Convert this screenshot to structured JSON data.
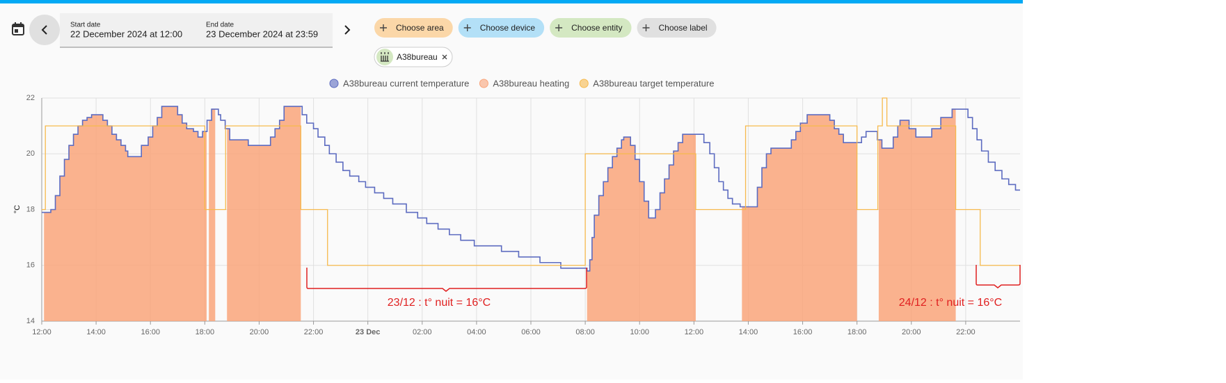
{
  "toolbar": {
    "start_label": "Start date",
    "start_value": "22 December 2024 at 12:00",
    "end_label": "End date",
    "end_value": "23 December 2024 at 23:59",
    "chips": [
      "Choose area",
      "Choose device",
      "Choose entity",
      "Choose label"
    ],
    "selected": "A38bureau"
  },
  "chart_data": {
    "type": "line",
    "step": true,
    "y_label": "°C",
    "grid": true,
    "xlim": [
      "2024-12-22T12:00",
      "2024-12-24T00:00"
    ],
    "ylim": [
      14,
      22
    ],
    "yticks": [
      14,
      16,
      18,
      20,
      22
    ],
    "xticks": [
      {
        "value": "2024-12-22T12:00",
        "label": "12:00"
      },
      {
        "value": "2024-12-22T14:00",
        "label": "14:00"
      },
      {
        "value": "2024-12-22T16:00",
        "label": "16:00"
      },
      {
        "value": "2024-12-22T18:00",
        "label": "18:00"
      },
      {
        "value": "2024-12-22T20:00",
        "label": "20:00"
      },
      {
        "value": "2024-12-22T22:00",
        "label": "22:00"
      },
      {
        "value": "2024-12-23T00:00",
        "label": "23 Dec",
        "bold": true
      },
      {
        "value": "2024-12-23T02:00",
        "label": "02:00"
      },
      {
        "value": "2024-12-23T04:00",
        "label": "04:00"
      },
      {
        "value": "2024-12-23T06:00",
        "label": "06:00"
      },
      {
        "value": "2024-12-23T08:00",
        "label": "08:00"
      },
      {
        "value": "2024-12-23T10:00",
        "label": "10:00"
      },
      {
        "value": "2024-12-23T12:00",
        "label": "12:00"
      },
      {
        "value": "2024-12-23T14:00",
        "label": "14:00"
      },
      {
        "value": "2024-12-23T16:00",
        "label": "16:00"
      },
      {
        "value": "2024-12-23T18:00",
        "label": "18:00"
      },
      {
        "value": "2024-12-23T20:00",
        "label": "20:00"
      },
      {
        "value": "2024-12-23T22:00",
        "label": "22:00"
      }
    ],
    "series": [
      {
        "name": "A38bureau current temperature",
        "color": "#5c6bc0",
        "x": [
          "2024-12-22T12:00",
          "2024-12-22T12:20",
          "2024-12-22T12:30",
          "2024-12-22T12:40",
          "2024-12-22T12:50",
          "2024-12-22T13:00",
          "2024-12-22T13:10",
          "2024-12-22T13:20",
          "2024-12-22T13:30",
          "2024-12-22T13:40",
          "2024-12-22T13:50",
          "2024-12-22T14:15",
          "2024-12-22T14:25",
          "2024-12-22T14:35",
          "2024-12-22T14:45",
          "2024-12-22T14:55",
          "2024-12-22T15:05",
          "2024-12-22T15:10",
          "2024-12-22T15:40",
          "2024-12-22T15:55",
          "2024-12-22T16:05",
          "2024-12-22T16:15",
          "2024-12-22T16:25",
          "2024-12-22T17:00",
          "2024-12-22T17:10",
          "2024-12-22T17:20",
          "2024-12-22T17:35",
          "2024-12-22T17:45",
          "2024-12-22T17:55",
          "2024-12-22T18:05",
          "2024-12-22T18:15",
          "2024-12-22T18:30",
          "2024-12-22T18:35",
          "2024-12-22T18:45",
          "2024-12-22T18:55",
          "2024-12-22T19:36",
          "2024-12-22T20:25",
          "2024-12-22T20:35",
          "2024-12-22T20:45",
          "2024-12-22T20:55",
          "2024-12-22T21:35",
          "2024-12-22T21:45",
          "2024-12-22T22:00",
          "2024-12-22T22:10",
          "2024-12-22T22:25",
          "2024-12-22T22:35",
          "2024-12-22T22:50",
          "2024-12-22T23:05",
          "2024-12-22T23:20",
          "2024-12-22T23:40",
          "2024-12-22T23:55",
          "2024-12-23T00:15",
          "2024-12-23T00:35",
          "2024-12-23T00:55",
          "2024-12-23T01:25",
          "2024-12-23T01:50",
          "2024-12-23T02:10",
          "2024-12-23T02:35",
          "2024-12-23T03:00",
          "2024-12-23T03:25",
          "2024-12-23T03:55",
          "2024-12-23T04:55",
          "2024-12-23T05:33",
          "2024-12-23T06:20",
          "2024-12-23T07:06",
          "2024-12-23T08:04",
          "2024-12-23T08:10",
          "2024-12-23T08:15",
          "2024-12-23T08:20",
          "2024-12-23T08:30",
          "2024-12-23T08:40",
          "2024-12-23T08:50",
          "2024-12-23T09:00",
          "2024-12-23T09:10",
          "2024-12-23T09:20",
          "2024-12-23T09:25",
          "2024-12-23T09:40",
          "2024-12-23T09:50",
          "2024-12-23T10:00",
          "2024-12-23T10:10",
          "2024-12-23T10:20",
          "2024-12-23T10:35",
          "2024-12-23T10:45",
          "2024-12-23T10:55",
          "2024-12-23T11:05",
          "2024-12-23T11:15",
          "2024-12-23T11:25",
          "2024-12-23T11:35",
          "2024-12-23T12:22",
          "2024-12-23T12:35",
          "2024-12-23T12:45",
          "2024-12-23T12:55",
          "2024-12-23T13:05",
          "2024-12-23T13:15",
          "2024-12-23T13:25",
          "2024-12-23T13:42",
          "2024-12-23T14:20",
          "2024-12-23T14:30",
          "2024-12-23T14:40",
          "2024-12-23T14:50",
          "2024-12-23T15:35",
          "2024-12-23T15:45",
          "2024-12-23T15:55",
          "2024-12-23T16:10",
          "2024-12-23T17:00",
          "2024-12-23T17:10",
          "2024-12-23T17:20",
          "2024-12-23T17:30",
          "2024-12-23T18:10",
          "2024-12-23T18:20",
          "2024-12-23T18:45",
          "2024-12-23T18:55",
          "2024-12-23T19:20",
          "2024-12-23T19:30",
          "2024-12-23T19:35",
          "2024-12-23T19:55",
          "2024-12-23T20:10",
          "2024-12-23T20:45",
          "2024-12-23T21:05",
          "2024-12-23T21:30",
          "2024-12-23T22:05",
          "2024-12-23T22:15",
          "2024-12-23T22:25",
          "2024-12-23T22:35",
          "2024-12-23T22:50",
          "2024-12-23T23:05",
          "2024-12-23T23:20",
          "2024-12-23T23:35",
          "2024-12-23T23:50"
        ],
        "values": [
          17.9,
          18.0,
          18.5,
          19.2,
          19.8,
          20.3,
          20.7,
          21.0,
          21.2,
          21.3,
          21.4,
          21.2,
          21.0,
          20.7,
          20.5,
          20.3,
          20.1,
          19.9,
          20.3,
          20.6,
          21.0,
          21.3,
          21.7,
          21.4,
          21.1,
          20.9,
          20.8,
          20.6,
          20.8,
          21.2,
          21.6,
          21.4,
          21.2,
          20.9,
          20.5,
          20.3,
          20.6,
          20.9,
          21.2,
          21.7,
          21.4,
          21.1,
          20.9,
          20.6,
          20.3,
          20.0,
          19.7,
          19.4,
          19.2,
          19.0,
          18.8,
          18.6,
          18.4,
          18.2,
          17.9,
          17.7,
          17.5,
          17.3,
          17.1,
          16.9,
          16.7,
          16.5,
          16.3,
          16.1,
          15.9,
          15.8,
          16.2,
          17.0,
          17.8,
          18.5,
          19.0,
          19.5,
          19.9,
          20.2,
          20.5,
          20.6,
          20.3,
          19.8,
          19.0,
          18.3,
          17.7,
          18.0,
          18.6,
          19.1,
          19.6,
          20.1,
          20.4,
          20.7,
          20.4,
          20.0,
          19.5,
          19.0,
          18.7,
          18.4,
          18.2,
          18.1,
          18.8,
          19.5,
          20.0,
          20.2,
          20.5,
          20.8,
          21.1,
          21.4,
          21.2,
          20.9,
          20.7,
          20.4,
          20.6,
          20.8,
          20.5,
          20.2,
          20.6,
          21.0,
          21.2,
          20.9,
          20.6,
          20.9,
          21.3,
          21.6,
          21.3,
          20.9,
          20.5,
          20.1,
          19.7,
          19.4,
          19.1,
          18.9,
          18.7
        ]
      },
      {
        "name": "A38bureau heating",
        "color": "#f9a47a",
        "periods": [
          {
            "start": "2024-12-22T12:05",
            "end": "2024-12-22T18:04"
          },
          {
            "start": "2024-12-22T18:09",
            "end": "2024-12-22T18:23"
          },
          {
            "start": "2024-12-22T18:49",
            "end": "2024-12-22T21:32"
          },
          {
            "start": "2024-12-23T08:04",
            "end": "2024-12-23T12:04"
          },
          {
            "start": "2024-12-23T13:46",
            "end": "2024-12-23T18:00"
          },
          {
            "start": "2024-12-23T18:48",
            "end": "2024-12-23T21:38"
          }
        ]
      },
      {
        "name": "A38bureau target temperature",
        "color": "#f6b94c",
        "x": [
          "2024-12-22T12:00",
          "2024-12-22T12:08",
          "2024-12-22T18:00",
          "2024-12-22T18:46",
          "2024-12-22T21:32",
          "2024-12-22T22:31",
          "2024-12-23T08:00",
          "2024-12-23T12:04",
          "2024-12-23T13:54",
          "2024-12-23T18:00",
          "2024-12-23T18:46",
          "2024-12-23T18:56",
          "2024-12-23T19:06",
          "2024-12-23T21:38",
          "2024-12-23T22:32"
        ],
        "values": [
          18,
          21,
          18,
          21,
          18,
          16,
          20,
          18,
          21,
          18,
          21,
          22,
          21,
          18,
          16
        ]
      }
    ],
    "annotations": [
      "23/12 : t° nuit  = 16°C",
      "24/12 : t° nuit  = 16°C"
    ]
  }
}
